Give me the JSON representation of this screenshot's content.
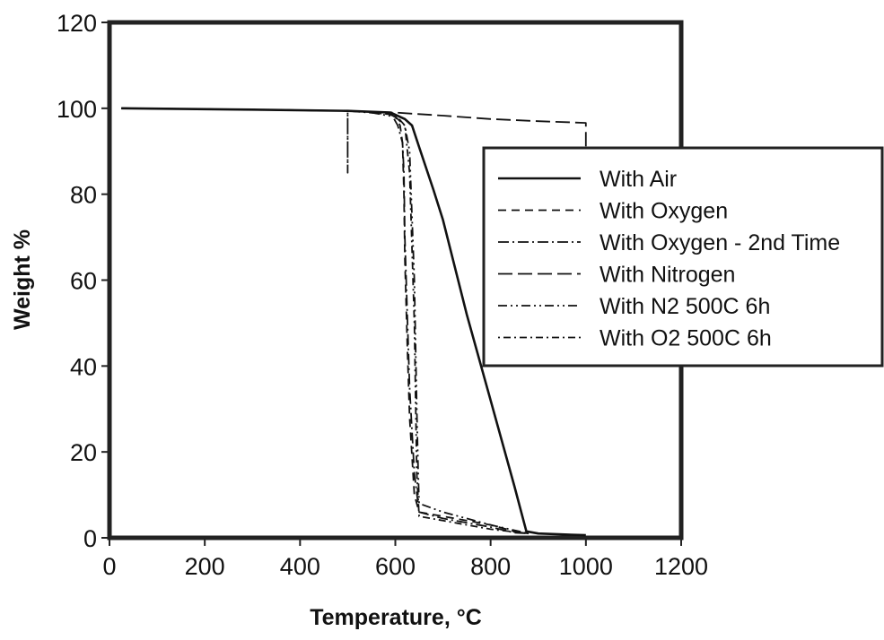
{
  "chart_data": {
    "type": "line",
    "xlabel": "Temperature, °C",
    "ylabel": "Weight %",
    "xlim": [
      0,
      1200
    ],
    "ylim": [
      0,
      120
    ],
    "xticks": [
      0,
      200,
      400,
      600,
      800,
      1000,
      1200
    ],
    "yticks": [
      0,
      20,
      40,
      60,
      80,
      100,
      120
    ],
    "grid": false,
    "legend_position": "right",
    "series": [
      {
        "name": "With Air",
        "style": "solid",
        "x": [
          25,
          300,
          500,
          590,
          620,
          635,
          650,
          680,
          700,
          750,
          800,
          850,
          875,
          900,
          950,
          1000
        ],
        "y": [
          100,
          99.7,
          99.4,
          99,
          97.5,
          96,
          91,
          81,
          74,
          52,
          32,
          12,
          1.5,
          1.0,
          0.8,
          0.6
        ]
      },
      {
        "name": "With Oxygen",
        "style": "dash",
        "x": [
          25,
          300,
          500,
          580,
          600,
          610,
          615,
          618,
          620,
          625,
          630,
          640,
          650,
          700,
          800,
          850,
          880
        ],
        "y": [
          100,
          99.7,
          99.4,
          99,
          98,
          96,
          92,
          80,
          65,
          45,
          28,
          10,
          6,
          5,
          3,
          1.5,
          1
        ]
      },
      {
        "name": "With Oxygen - 2nd Time",
        "style": "dashdot",
        "x": [
          25,
          300,
          500,
          590,
          605,
          615,
          618,
          620,
          625,
          630,
          640,
          650,
          700,
          800,
          850,
          880
        ],
        "y": [
          100,
          99.7,
          99.4,
          99,
          96,
          92,
          85,
          70,
          52,
          35,
          15,
          6,
          4.5,
          2.5,
          1.2,
          1
        ]
      },
      {
        "name": "With Nitrogen",
        "style": "longdash",
        "x": [
          25,
          300,
          500,
          600,
          700,
          800,
          900,
          1000,
          1000
        ],
        "y": [
          100,
          99.7,
          99.4,
          99,
          98.3,
          97.5,
          97,
          96.6,
          91
        ]
      },
      {
        "name": "With N2 500C 6h",
        "style": "dashdotdot",
        "x": [
          25,
          300,
          500,
          500,
          500,
          540,
          600,
          620,
          630,
          640,
          645,
          648,
          650,
          700,
          800,
          880
        ],
        "y": [
          100,
          99.7,
          99.4,
          85,
          99.4,
          99.2,
          98,
          96,
          90,
          60,
          30,
          15,
          8,
          6,
          3,
          1
        ]
      },
      {
        "name": "With O2 500C 6h",
        "style": "dotdash",
        "x": [
          25,
          300,
          500,
          600,
          620,
          630,
          640,
          645,
          650,
          700,
          800,
          880
        ],
        "y": [
          100,
          99.7,
          99.4,
          98.5,
          96,
          85,
          50,
          15,
          5,
          4,
          2,
          1
        ]
      }
    ]
  }
}
